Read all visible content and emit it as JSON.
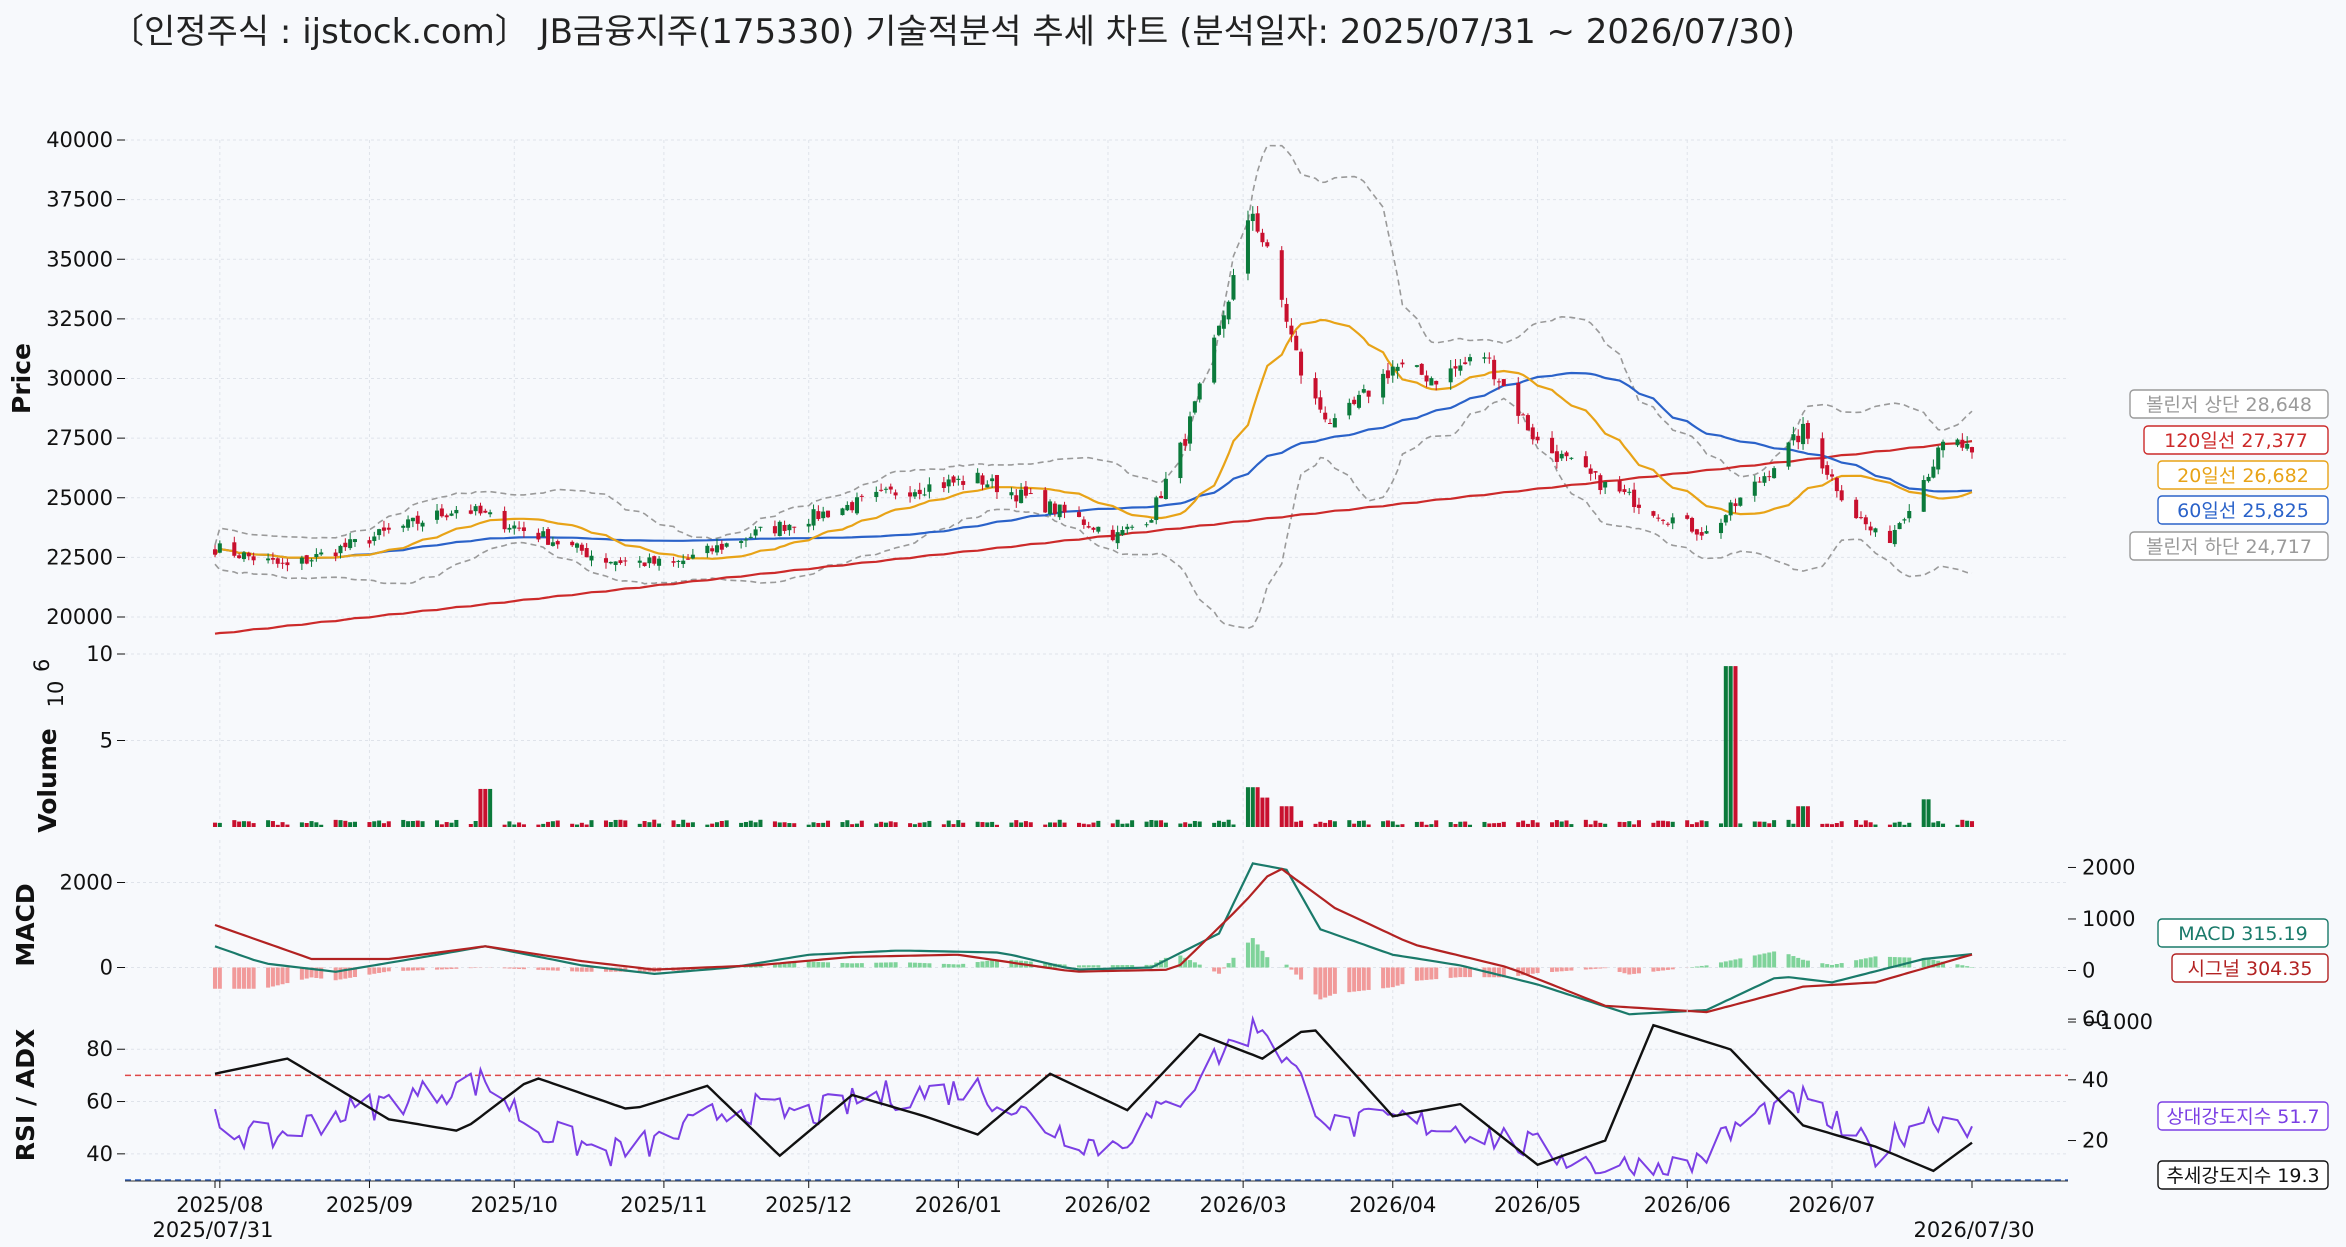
{
  "title": "〔인정주식 : ijstock.com〕 JB금융지주(175330) 기술적분석 추세 차트 (분석일자: 2025/07/31 ~ 2026/07/30)",
  "colors": {
    "up": "#0b7a3b",
    "down": "#c8102e",
    "ma20": "#e8a317",
    "ma60": "#2a62c9",
    "ma120": "#cc2a2a",
    "bb": "#9a9a9a",
    "macd": "#1a7a6a",
    "signal": "#b22222",
    "hist_pos": "#7fd39a",
    "hist_neg": "#f19a9a",
    "rsi": "#7b3fe4",
    "adx": "#111111"
  },
  "chart_data": [
    {
      "type": "line",
      "panel": "price",
      "ylabel": "Price",
      "ylim": [
        20000,
        40000
      ],
      "yticks": [
        "20000",
        "22500",
        "25000",
        "27500",
        "30000",
        "32500",
        "35000",
        "37500",
        "40000"
      ],
      "x_start": "2025-07-31",
      "x_end": "2026-07-30",
      "xtick_labels": [
        "2025/08",
        "2025/09",
        "2025/10",
        "2025/11",
        "2025/12",
        "2026/01",
        "2026/02",
        "2026/03",
        "2026/04",
        "2026/05",
        "2026/06",
        "2026/07"
      ],
      "xtick_dates": [
        "2025-08-01",
        "2025-09-01",
        "2025-10-01",
        "2025-11-01",
        "2025-12-01",
        "2026-01-01",
        "2026-02-01",
        "2026-03-01",
        "2026-04-01",
        "2026-05-01",
        "2026-06-01",
        "2026-07-01"
      ],
      "first_date_label": "2025/07/31",
      "last_date_label": "2026/07/30",
      "close_keypoints": [
        [
          "2025-07-31",
          22900
        ],
        [
          "2025-08-15",
          22100
        ],
        [
          "2025-09-01",
          23300
        ],
        [
          "2025-09-20",
          24600
        ],
        [
          "2025-10-01",
          23800
        ],
        [
          "2025-10-20",
          22400
        ],
        [
          "2025-11-03",
          22200
        ],
        [
          "2025-11-20",
          23500
        ],
        [
          "2025-12-05",
          24400
        ],
        [
          "2025-12-20",
          25300
        ],
        [
          "2026-01-05",
          25800
        ],
        [
          "2026-01-20",
          24600
        ],
        [
          "2026-02-03",
          23400
        ],
        [
          "2026-02-10",
          24300
        ],
        [
          "2026-02-17",
          27500
        ],
        [
          "2026-02-24",
          32000
        ],
        [
          "2026-03-03",
          37000
        ],
        [
          "2026-03-08",
          34000
        ],
        [
          "2026-03-14",
          29500
        ],
        [
          "2026-03-20",
          28000
        ],
        [
          "2026-04-01",
          30500
        ],
        [
          "2026-04-10",
          30000
        ],
        [
          "2026-04-20",
          31000
        ],
        [
          "2026-05-01",
          27300
        ],
        [
          "2026-05-15",
          25500
        ],
        [
          "2026-05-28",
          24200
        ],
        [
          "2026-06-05",
          23500
        ],
        [
          "2026-06-15",
          25500
        ],
        [
          "2026-06-25",
          27800
        ],
        [
          "2026-07-05",
          24500
        ],
        [
          "2026-07-12",
          23000
        ],
        [
          "2026-07-20",
          25800
        ],
        [
          "2026-07-25",
          27500
        ],
        [
          "2026-07-30",
          26900
        ]
      ],
      "series": [
        {
          "name": "볼린저 상단",
          "last": "28,648"
        },
        {
          "name": "120일선",
          "last": "27,377"
        },
        {
          "name": "20일선",
          "last": "26,682"
        },
        {
          "name": "60일선",
          "last": "25,825"
        },
        {
          "name": "볼린저 하단",
          "last": "24,717"
        }
      ]
    },
    {
      "type": "bar",
      "panel": "volume",
      "ylabel": "Volume",
      "y_exponent": "6",
      "ylim": [
        0,
        10
      ],
      "yticks": [
        "5",
        "10"
      ],
      "baseline": 0.25,
      "spikes": [
        [
          "2025-09-25",
          2.2
        ],
        [
          "2026-03-03",
          2.3
        ],
        [
          "2026-03-06",
          1.7
        ],
        [
          "2026-03-10",
          1.2
        ],
        [
          "2026-06-10",
          9.3
        ],
        [
          "2026-06-25",
          1.2
        ],
        [
          "2026-07-20",
          1.6
        ]
      ]
    },
    {
      "type": "line",
      "panel": "macd",
      "ylabel": "MACD",
      "ylim_left": [
        -1000,
        3000
      ],
      "yticks_left": [
        "0",
        "2000"
      ],
      "yticks_right": [
        "−1000",
        "0",
        "1000",
        "2000"
      ],
      "series": [
        {
          "name": "MACD",
          "last": "315.19"
        },
        {
          "name": "시그널",
          "last": "304.35"
        }
      ],
      "macd_keypoints": [
        [
          "2025-07-31",
          500
        ],
        [
          "2025-08-10",
          100
        ],
        [
          "2025-08-25",
          -100
        ],
        [
          "2025-09-15",
          300
        ],
        [
          "2025-09-25",
          500
        ],
        [
          "2025-10-15",
          50
        ],
        [
          "2025-10-30",
          -150
        ],
        [
          "2025-11-15",
          0
        ],
        [
          "2025-12-01",
          300
        ],
        [
          "2025-12-20",
          400
        ],
        [
          "2026-01-10",
          350
        ],
        [
          "2026-01-25",
          -50
        ],
        [
          "2026-02-10",
          0
        ],
        [
          "2026-02-24",
          800
        ],
        [
          "2026-03-03",
          2450
        ],
        [
          "2026-03-10",
          2300
        ],
        [
          "2026-03-17",
          900
        ],
        [
          "2026-04-01",
          300
        ],
        [
          "2026-04-15",
          50
        ],
        [
          "2026-05-01",
          -400
        ],
        [
          "2026-05-20",
          -1100
        ],
        [
          "2026-06-05",
          -1000
        ],
        [
          "2026-06-20",
          -200
        ],
        [
          "2026-07-01",
          -350
        ],
        [
          "2026-07-20",
          200
        ],
        [
          "2026-07-30",
          315.19
        ]
      ],
      "signal_keypoints": [
        [
          "2025-07-31",
          1000
        ],
        [
          "2025-08-20",
          200
        ],
        [
          "2025-09-05",
          200
        ],
        [
          "2025-09-25",
          500
        ],
        [
          "2025-10-15",
          150
        ],
        [
          "2025-10-30",
          -50
        ],
        [
          "2025-11-20",
          50
        ],
        [
          "2025-12-10",
          250
        ],
        [
          "2026-01-01",
          300
        ],
        [
          "2026-01-25",
          -100
        ],
        [
          "2026-02-15",
          -50
        ],
        [
          "2026-03-01",
          1500
        ],
        [
          "2026-03-08",
          2400
        ],
        [
          "2026-03-20",
          1400
        ],
        [
          "2026-04-05",
          550
        ],
        [
          "2026-04-25",
          0
        ],
        [
          "2026-05-15",
          -900
        ],
        [
          "2026-06-05",
          -1050
        ],
        [
          "2026-06-25",
          -450
        ],
        [
          "2026-07-10",
          -350
        ],
        [
          "2026-07-30",
          304.35
        ]
      ]
    },
    {
      "type": "line",
      "panel": "rsi_adx",
      "ylabel": "RSI / ADX",
      "ylim_left": [
        30,
        95
      ],
      "yticks_left": [
        "40",
        "60",
        "80"
      ],
      "yticks_right": [
        "20",
        "40",
        "60"
      ],
      "overbought": 70,
      "oversold": 30,
      "series": [
        {
          "name": "상대강도지수",
          "last": "51.7"
        },
        {
          "name": "추세강도지수",
          "last": "19.3"
        }
      ],
      "rsi_keypoints": [
        [
          "2025-07-31",
          52
        ],
        [
          "2025-08-10",
          45
        ],
        [
          "2025-08-25",
          55
        ],
        [
          "2025-09-10",
          62
        ],
        [
          "2025-09-25",
          68
        ],
        [
          "2025-10-05",
          50
        ],
        [
          "2025-10-20",
          40
        ],
        [
          "2025-11-01",
          45
        ],
        [
          "2025-11-15",
          58
        ],
        [
          "2025-12-01",
          55
        ],
        [
          "2025-12-15",
          62
        ],
        [
          "2026-01-05",
          65
        ],
        [
          "2026-01-20",
          50
        ],
        [
          "2026-02-01",
          42
        ],
        [
          "2026-02-15",
          60
        ],
        [
          "2026-02-25",
          80
        ],
        [
          "2026-03-05",
          90
        ],
        [
          "2026-03-12",
          70
        ],
        [
          "2026-03-20",
          50
        ],
        [
          "2026-04-01",
          53
        ],
        [
          "2026-04-15",
          50
        ],
        [
          "2026-05-01",
          42
        ],
        [
          "2026-05-15",
          35
        ],
        [
          "2026-06-01",
          35
        ],
        [
          "2026-06-15",
          55
        ],
        [
          "2026-06-25",
          60
        ],
        [
          "2026-07-10",
          40
        ],
        [
          "2026-07-20",
          55
        ],
        [
          "2026-07-30",
          51.7
        ]
      ],
      "adx_keypoints": [
        [
          "2025-07-31",
          42
        ],
        [
          "2025-08-15",
          47
        ],
        [
          "2025-09-05",
          27
        ],
        [
          "2025-09-20",
          23
        ],
        [
          "2025-10-05",
          41
        ],
        [
          "2025-10-25",
          30
        ],
        [
          "2025-11-10",
          38
        ],
        [
          "2025-11-25",
          15
        ],
        [
          "2025-12-10",
          35
        ],
        [
          "2025-12-25",
          28
        ],
        [
          "2026-01-05",
          22
        ],
        [
          "2026-01-20",
          42
        ],
        [
          "2026-02-05",
          30
        ],
        [
          "2026-02-20",
          55
        ],
        [
          "2026-03-05",
          47
        ],
        [
          "2026-03-15",
          58
        ],
        [
          "2026-04-01",
          28
        ],
        [
          "2026-04-15",
          32
        ],
        [
          "2026-05-01",
          12
        ],
        [
          "2026-05-15",
          20
        ],
        [
          "2026-05-25",
          58
        ],
        [
          "2026-06-10",
          50
        ],
        [
          "2026-06-25",
          25
        ],
        [
          "2026-07-10",
          18
        ],
        [
          "2026-07-22",
          10
        ],
        [
          "2026-07-30",
          19.3
        ]
      ]
    }
  ]
}
